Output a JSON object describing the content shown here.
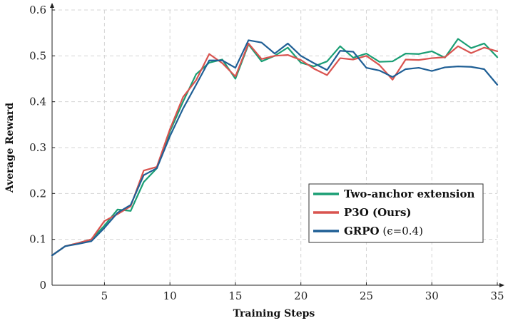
{
  "chart_data": {
    "type": "line",
    "xlabel": "Training Steps",
    "ylabel": "Average Reward",
    "xlim": [
      1,
      35
    ],
    "ylim": [
      0,
      0.6
    ],
    "xticks": [
      5,
      10,
      15,
      20,
      25,
      30,
      35
    ],
    "yticks": [
      0,
      0.1,
      0.2,
      0.3,
      0.4,
      0.5,
      0.6
    ],
    "xtick_labels": [
      "5",
      "10",
      "15",
      "20",
      "25",
      "30",
      "35"
    ],
    "ytick_labels": [
      "0",
      "0.1",
      "0.2",
      "0.3",
      "0.4",
      "0.5",
      "0.6"
    ],
    "grid": true,
    "legend_position": "bottom-right",
    "x": [
      1,
      2,
      3,
      4,
      5,
      6,
      7,
      8,
      9,
      10,
      11,
      12,
      13,
      14,
      15,
      16,
      17,
      18,
      19,
      20,
      21,
      22,
      23,
      24,
      25,
      26,
      27,
      28,
      29,
      30,
      31,
      32,
      33,
      34,
      35
    ],
    "series": [
      {
        "name": "Two-anchor extension",
        "name_bold": "Two-anchor extension",
        "name_suffix": "",
        "color": "#1a9e74",
        "values": [
          0.065,
          0.085,
          0.092,
          0.1,
          0.13,
          0.165,
          0.162,
          0.225,
          0.255,
          0.335,
          0.4,
          0.46,
          0.485,
          0.492,
          0.45,
          0.525,
          0.488,
          0.5,
          0.518,
          0.485,
          0.477,
          0.488,
          0.521,
          0.496,
          0.505,
          0.487,
          0.488,
          0.505,
          0.504,
          0.51,
          0.496,
          0.537,
          0.517,
          0.527,
          0.497
        ]
      },
      {
        "name": "P3O (Ours)",
        "name_bold": "P3O (Ours)",
        "name_suffix": "",
        "color": "#d9534f",
        "values": [
          0.065,
          0.085,
          0.092,
          0.1,
          0.14,
          0.155,
          0.172,
          0.25,
          0.258,
          0.34,
          0.41,
          0.447,
          0.504,
          0.484,
          0.455,
          0.527,
          0.493,
          0.5,
          0.502,
          0.491,
          0.472,
          0.458,
          0.495,
          0.492,
          0.5,
          0.48,
          0.448,
          0.492,
          0.491,
          0.495,
          0.497,
          0.521,
          0.506,
          0.518,
          0.51
        ]
      },
      {
        "name": "GRPO (ϵ=0.4)",
        "name_bold": "GRPO",
        "name_suffix": " (ϵ=0.4)",
        "color": "#1f5f95",
        "values": [
          0.065,
          0.085,
          0.09,
          0.096,
          0.125,
          0.158,
          0.175,
          0.24,
          0.255,
          0.325,
          0.385,
          0.437,
          0.49,
          0.49,
          0.474,
          0.534,
          0.529,
          0.505,
          0.527,
          0.5,
          0.484,
          0.469,
          0.511,
          0.509,
          0.474,
          0.468,
          0.454,
          0.471,
          0.474,
          0.467,
          0.475,
          0.477,
          0.476,
          0.471,
          0.437
        ]
      }
    ]
  }
}
